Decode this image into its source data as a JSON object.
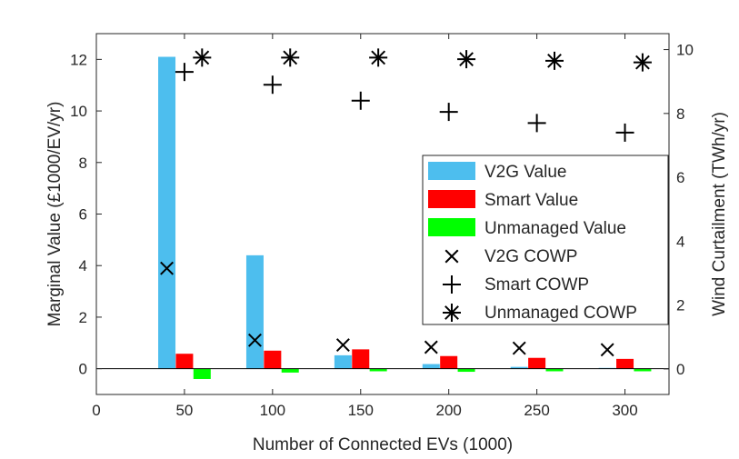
{
  "chart_data": {
    "type": "bar",
    "title": "",
    "xlabel": "Number of Connected EVs (1000)",
    "ylabel_left": "Marginal Value (£1000/EV/yr)",
    "ylabel_right": "Wind Curtailment (TWh/yr)",
    "xlim": [
      0,
      325
    ],
    "ylim_left": [
      -1,
      13
    ],
    "ylim_right": [
      -0.8,
      10.5
    ],
    "xticks": [
      0,
      50,
      100,
      150,
      200,
      250,
      300
    ],
    "yticks_left": [
      0,
      2,
      4,
      6,
      8,
      10,
      12
    ],
    "yticks_right": [
      0,
      2,
      4,
      6,
      8,
      10
    ],
    "categories": [
      50,
      100,
      150,
      200,
      250,
      300
    ],
    "legend_position": "center-right",
    "grid": false,
    "series": [
      {
        "name": "V2G Value",
        "kind": "bar",
        "axis": "left",
        "color": "#4DBEEE",
        "x": [
          40,
          90,
          140,
          190,
          240,
          290
        ],
        "values": [
          12.1,
          4.4,
          0.52,
          0.18,
          0.07,
          0.03
        ]
      },
      {
        "name": "Smart Value",
        "kind": "bar",
        "axis": "left",
        "color": "#FF0000",
        "x": [
          50,
          100,
          150,
          200,
          250,
          300
        ],
        "values": [
          0.58,
          0.7,
          0.75,
          0.49,
          0.42,
          0.38
        ]
      },
      {
        "name": "Unmanaged Value",
        "kind": "bar",
        "axis": "left",
        "color": "#00FF00",
        "x": [
          60,
          110,
          160,
          210,
          260,
          310
        ],
        "values": [
          -0.4,
          -0.15,
          -0.1,
          -0.12,
          -0.1,
          -0.1
        ]
      },
      {
        "name": "V2G COWP",
        "kind": "marker",
        "marker": "x",
        "axis": "right",
        "color": "#000000",
        "x": [
          40,
          90,
          140,
          190,
          240,
          290
        ],
        "values": [
          3.15,
          0.9,
          0.75,
          0.68,
          0.65,
          0.6
        ]
      },
      {
        "name": "Smart COWP",
        "kind": "marker",
        "marker": "plus",
        "axis": "right",
        "color": "#000000",
        "x": [
          50,
          100,
          150,
          200,
          250,
          300
        ],
        "values": [
          9.3,
          8.9,
          8.4,
          8.05,
          7.7,
          7.4
        ]
      },
      {
        "name": "Unmanaged COWP",
        "kind": "marker",
        "marker": "asterisk",
        "axis": "right",
        "color": "#000000",
        "x": [
          60,
          110,
          160,
          210,
          260,
          310
        ],
        "values": [
          9.75,
          9.75,
          9.75,
          9.7,
          9.65,
          9.6
        ]
      }
    ]
  }
}
